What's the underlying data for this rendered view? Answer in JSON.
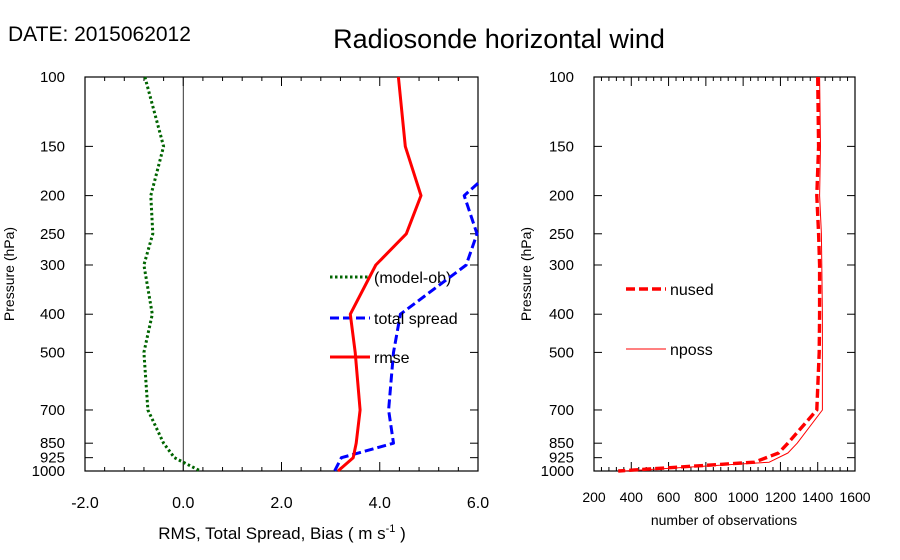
{
  "header": {
    "date_label": "DATE: 2015062012",
    "title": "Radiosonde horizontal wind"
  },
  "chart_data": [
    {
      "type": "line",
      "panel": "left",
      "xlabel_main": "RMS, Total Spread, Bias ( m s",
      "xlabel_sup": "-1",
      "xlabel_end": " )",
      "ylabel": "Pressure (hPa)",
      "xlim": [
        -2.0,
        6.0
      ],
      "ylim": [
        1000,
        100
      ],
      "y_scale": "log",
      "x_ticks": [
        -2.0,
        0.0,
        2.0,
        4.0,
        6.0
      ],
      "x_tick_labels": [
        "-2.0",
        "0.0",
        "2.0",
        "4.0",
        "6.0"
      ],
      "y_ticks": [
        100,
        150,
        200,
        250,
        300,
        400,
        500,
        700,
        850,
        925,
        1000
      ],
      "y_tick_labels": [
        "100",
        "150",
        "200",
        "250",
        "300",
        "400",
        "500",
        "700",
        "850",
        "925",
        "1000"
      ],
      "zero_line": 0.0,
      "legend_position": "center-right",
      "series": [
        {
          "name": "(model-ob)",
          "style": "dotted",
          "color": "#006400",
          "x": [
            -0.78,
            -0.4,
            -0.66,
            -0.62,
            -0.8,
            -0.63,
            -0.8,
            -0.72,
            -0.4,
            -0.18,
            0.35
          ],
          "y": [
            100,
            150,
            200,
            250,
            300,
            400,
            500,
            700,
            850,
            925,
            1000
          ]
        },
        {
          "name": "total spread",
          "style": "dashed",
          "color": "#0000ff",
          "x": [
            6.0,
            5.72,
            5.98,
            5.76,
            4.42,
            4.28,
            4.18,
            4.28,
            3.22,
            3.08
          ],
          "y": [
            186,
            200,
            250,
            300,
            400,
            500,
            700,
            850,
            925,
            1000
          ]
        },
        {
          "name": "rmse",
          "style": "solid",
          "color": "#ff0000",
          "x": [
            4.38,
            4.52,
            4.84,
            4.54,
            3.92,
            3.4,
            3.5,
            3.6,
            3.52,
            3.46,
            3.15
          ],
          "y": [
            100,
            150,
            200,
            250,
            300,
            400,
            500,
            700,
            850,
            925,
            1000
          ]
        }
      ]
    },
    {
      "type": "line",
      "panel": "right",
      "xlabel": "number of observations",
      "ylabel": "Pressure (hPa)",
      "xlim": [
        200,
        1600
      ],
      "ylim": [
        1000,
        100
      ],
      "y_scale": "log",
      "x_ticks": [
        200,
        400,
        600,
        800,
        1000,
        1200,
        1400,
        1600
      ],
      "x_tick_labels": [
        "200",
        "400",
        "600",
        "800",
        "1000",
        "1200",
        "1400",
        "1600"
      ],
      "y_ticks": [
        100,
        150,
        200,
        250,
        300,
        400,
        500,
        700,
        850,
        925,
        1000
      ],
      "y_tick_labels": [
        "100",
        "150",
        "200",
        "250",
        "300",
        "400",
        "500",
        "700",
        "850",
        "925",
        "1000"
      ],
      "legend_position": "center-left",
      "series": [
        {
          "name": "nused",
          "style": "dashed",
          "color": "#ff0000",
          "x": [
            1400,
            1405,
            1395,
            1405,
            1410,
            1410,
            1408,
            1395,
            1240,
            1190,
            1060,
            330
          ],
          "y": [
            100,
            150,
            200,
            250,
            300,
            400,
            500,
            700,
            850,
            900,
            950,
            1000
          ]
        },
        {
          "name": "nposs",
          "style": "solid",
          "color": "#ff0000",
          "x": [
            1410,
            1415,
            1410,
            1420,
            1422,
            1425,
            1425,
            1425,
            1290,
            1240,
            1140,
            360
          ],
          "y": [
            100,
            150,
            200,
            250,
            300,
            400,
            500,
            700,
            850,
            900,
            950,
            1000
          ]
        }
      ]
    }
  ]
}
